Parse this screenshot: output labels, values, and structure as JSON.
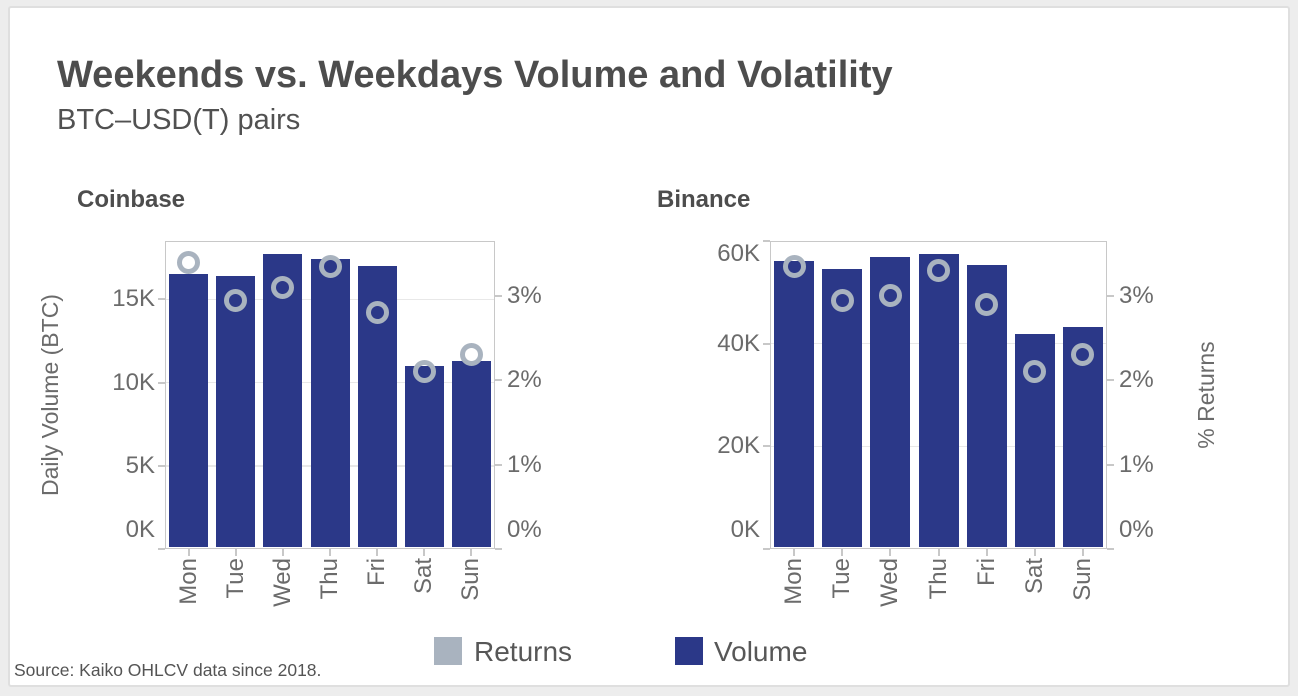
{
  "page": {
    "title": "Weekends vs. Weekdays Volume and Volatility",
    "subtitle": "BTC–USD(T) pairs",
    "source": "Source: Kaiko OHLCV data since 2018."
  },
  "colors": {
    "volume": "#2b3888",
    "returns": "#a9b3bf",
    "grid": "#e8e8e8",
    "plot_border": "#c8c8c8",
    "axis_text": "#6b6b6b",
    "title_text": "#4d4d4d",
    "page_bg": "#ededed",
    "card_bg": "#ffffff"
  },
  "legend": {
    "items": [
      {
        "label": "Returns",
        "color_key": "returns"
      },
      {
        "label": "Volume",
        "color_key": "volume"
      }
    ]
  },
  "chart_data": [
    {
      "type": "bar",
      "title": "Coinbase",
      "categories": [
        "Mon",
        "Tue",
        "Wed",
        "Thu",
        "Fri",
        "Sat",
        "Sun"
      ],
      "series": [
        {
          "name": "Volume",
          "type": "bar",
          "axis": "left",
          "values": [
            16500,
            16400,
            17700,
            17400,
            17000,
            11000,
            11300
          ]
        },
        {
          "name": "Returns",
          "type": "point",
          "axis": "right",
          "values": [
            3.4,
            2.95,
            3.1,
            3.35,
            2.8,
            2.1,
            2.3
          ]
        }
      ],
      "axis_left": {
        "title": "Daily Volume (BTC)",
        "ticks": [
          0,
          5000,
          10000,
          15000
        ],
        "tick_labels": [
          "0K",
          "5K",
          "10K",
          "15K"
        ],
        "min": 0,
        "max": 18500
      },
      "axis_right": {
        "title": "",
        "ticks": [
          0,
          1,
          2,
          3
        ],
        "tick_labels": [
          "0%",
          "1%",
          "2%",
          "3%"
        ],
        "min": 0,
        "max": 3.65
      },
      "grid": true,
      "legend_position": "bottom"
    },
    {
      "type": "bar",
      "title": "Binance",
      "categories": [
        "Mon",
        "Tue",
        "Wed",
        "Thu",
        "Fri",
        "Sat",
        "Sun"
      ],
      "series": [
        {
          "name": "Volume",
          "type": "bar",
          "axis": "left",
          "values": [
            56200,
            54500,
            56900,
            57400,
            55400,
            41800,
            43300
          ]
        },
        {
          "name": "Returns",
          "type": "point",
          "axis": "right",
          "values": [
            3.35,
            2.95,
            3.0,
            3.3,
            2.9,
            2.1,
            2.3
          ]
        }
      ],
      "axis_left": {
        "title": "",
        "ticks": [
          0,
          20000,
          40000,
          60000
        ],
        "tick_labels": [
          "0K",
          "20K",
          "40K",
          "60K"
        ],
        "min": 0,
        "max": 60000
      },
      "axis_right": {
        "title": "% Returns",
        "ticks": [
          0,
          1,
          2,
          3
        ],
        "tick_labels": [
          "0%",
          "1%",
          "2%",
          "3%"
        ],
        "min": 0,
        "max": 3.65
      },
      "grid": true,
      "legend_position": "bottom"
    }
  ]
}
